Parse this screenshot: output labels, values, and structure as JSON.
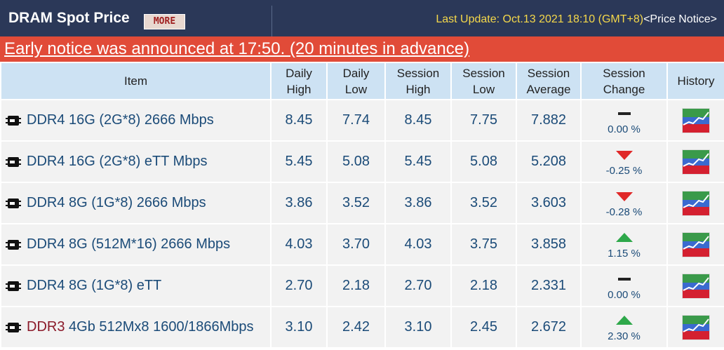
{
  "header": {
    "title": "DRAM Spot Price",
    "more_button": "MORE",
    "last_update": "Last Update: Oct.13 2021 18:10 (GMT+8)",
    "price_notice": "<Price Notice>"
  },
  "notice": "Early notice was announced at 17:50. (20 minutes in advance)",
  "table": {
    "columns": [
      "Item",
      [
        "Daily",
        "High"
      ],
      [
        "Daily",
        "Low"
      ],
      [
        "Session",
        "High"
      ],
      [
        "Session",
        "Low"
      ],
      [
        "Session",
        "Average"
      ],
      [
        "Session",
        "Change"
      ],
      "History"
    ],
    "rows": [
      {
        "item": [
          "DDR4 16G (2G*8) 2666 Mbps"
        ],
        "values": [
          "8.45",
          "7.74",
          "8.45",
          "7.75",
          "7.882"
        ],
        "change": "0.00 %",
        "direction": "flat"
      },
      {
        "item": [
          "DDR4 16G (2G*8) eTT Mbps"
        ],
        "values": [
          "5.45",
          "5.08",
          "5.45",
          "5.08",
          "5.208"
        ],
        "change": "-0.25 %",
        "direction": "down"
      },
      {
        "item": [
          "DDR4 8G (1G*8) 2666 Mbps"
        ],
        "values": [
          "3.86",
          "3.52",
          "3.86",
          "3.52",
          "3.603"
        ],
        "change": "-0.28 %",
        "direction": "down"
      },
      {
        "item": [
          "DDR4 8G (512M*16) 2666 Mbps"
        ],
        "values": [
          "4.03",
          "3.70",
          "4.03",
          "3.75",
          "3.858"
        ],
        "change": "1.15 %",
        "direction": "up"
      },
      {
        "item": [
          "DDR4 8G (1G*8) eTT"
        ],
        "values": [
          "2.70",
          "2.18",
          "2.70",
          "2.18",
          "2.331"
        ],
        "change": "0.00 %",
        "direction": "flat"
      },
      {
        "item": [
          "DDR3",
          " 4Gb 512Mx8 1600/1866Mbps"
        ],
        "values": [
          "3.10",
          "2.42",
          "3.10",
          "2.45",
          "2.672"
        ],
        "change": "2.30 %",
        "direction": "up"
      }
    ]
  }
}
